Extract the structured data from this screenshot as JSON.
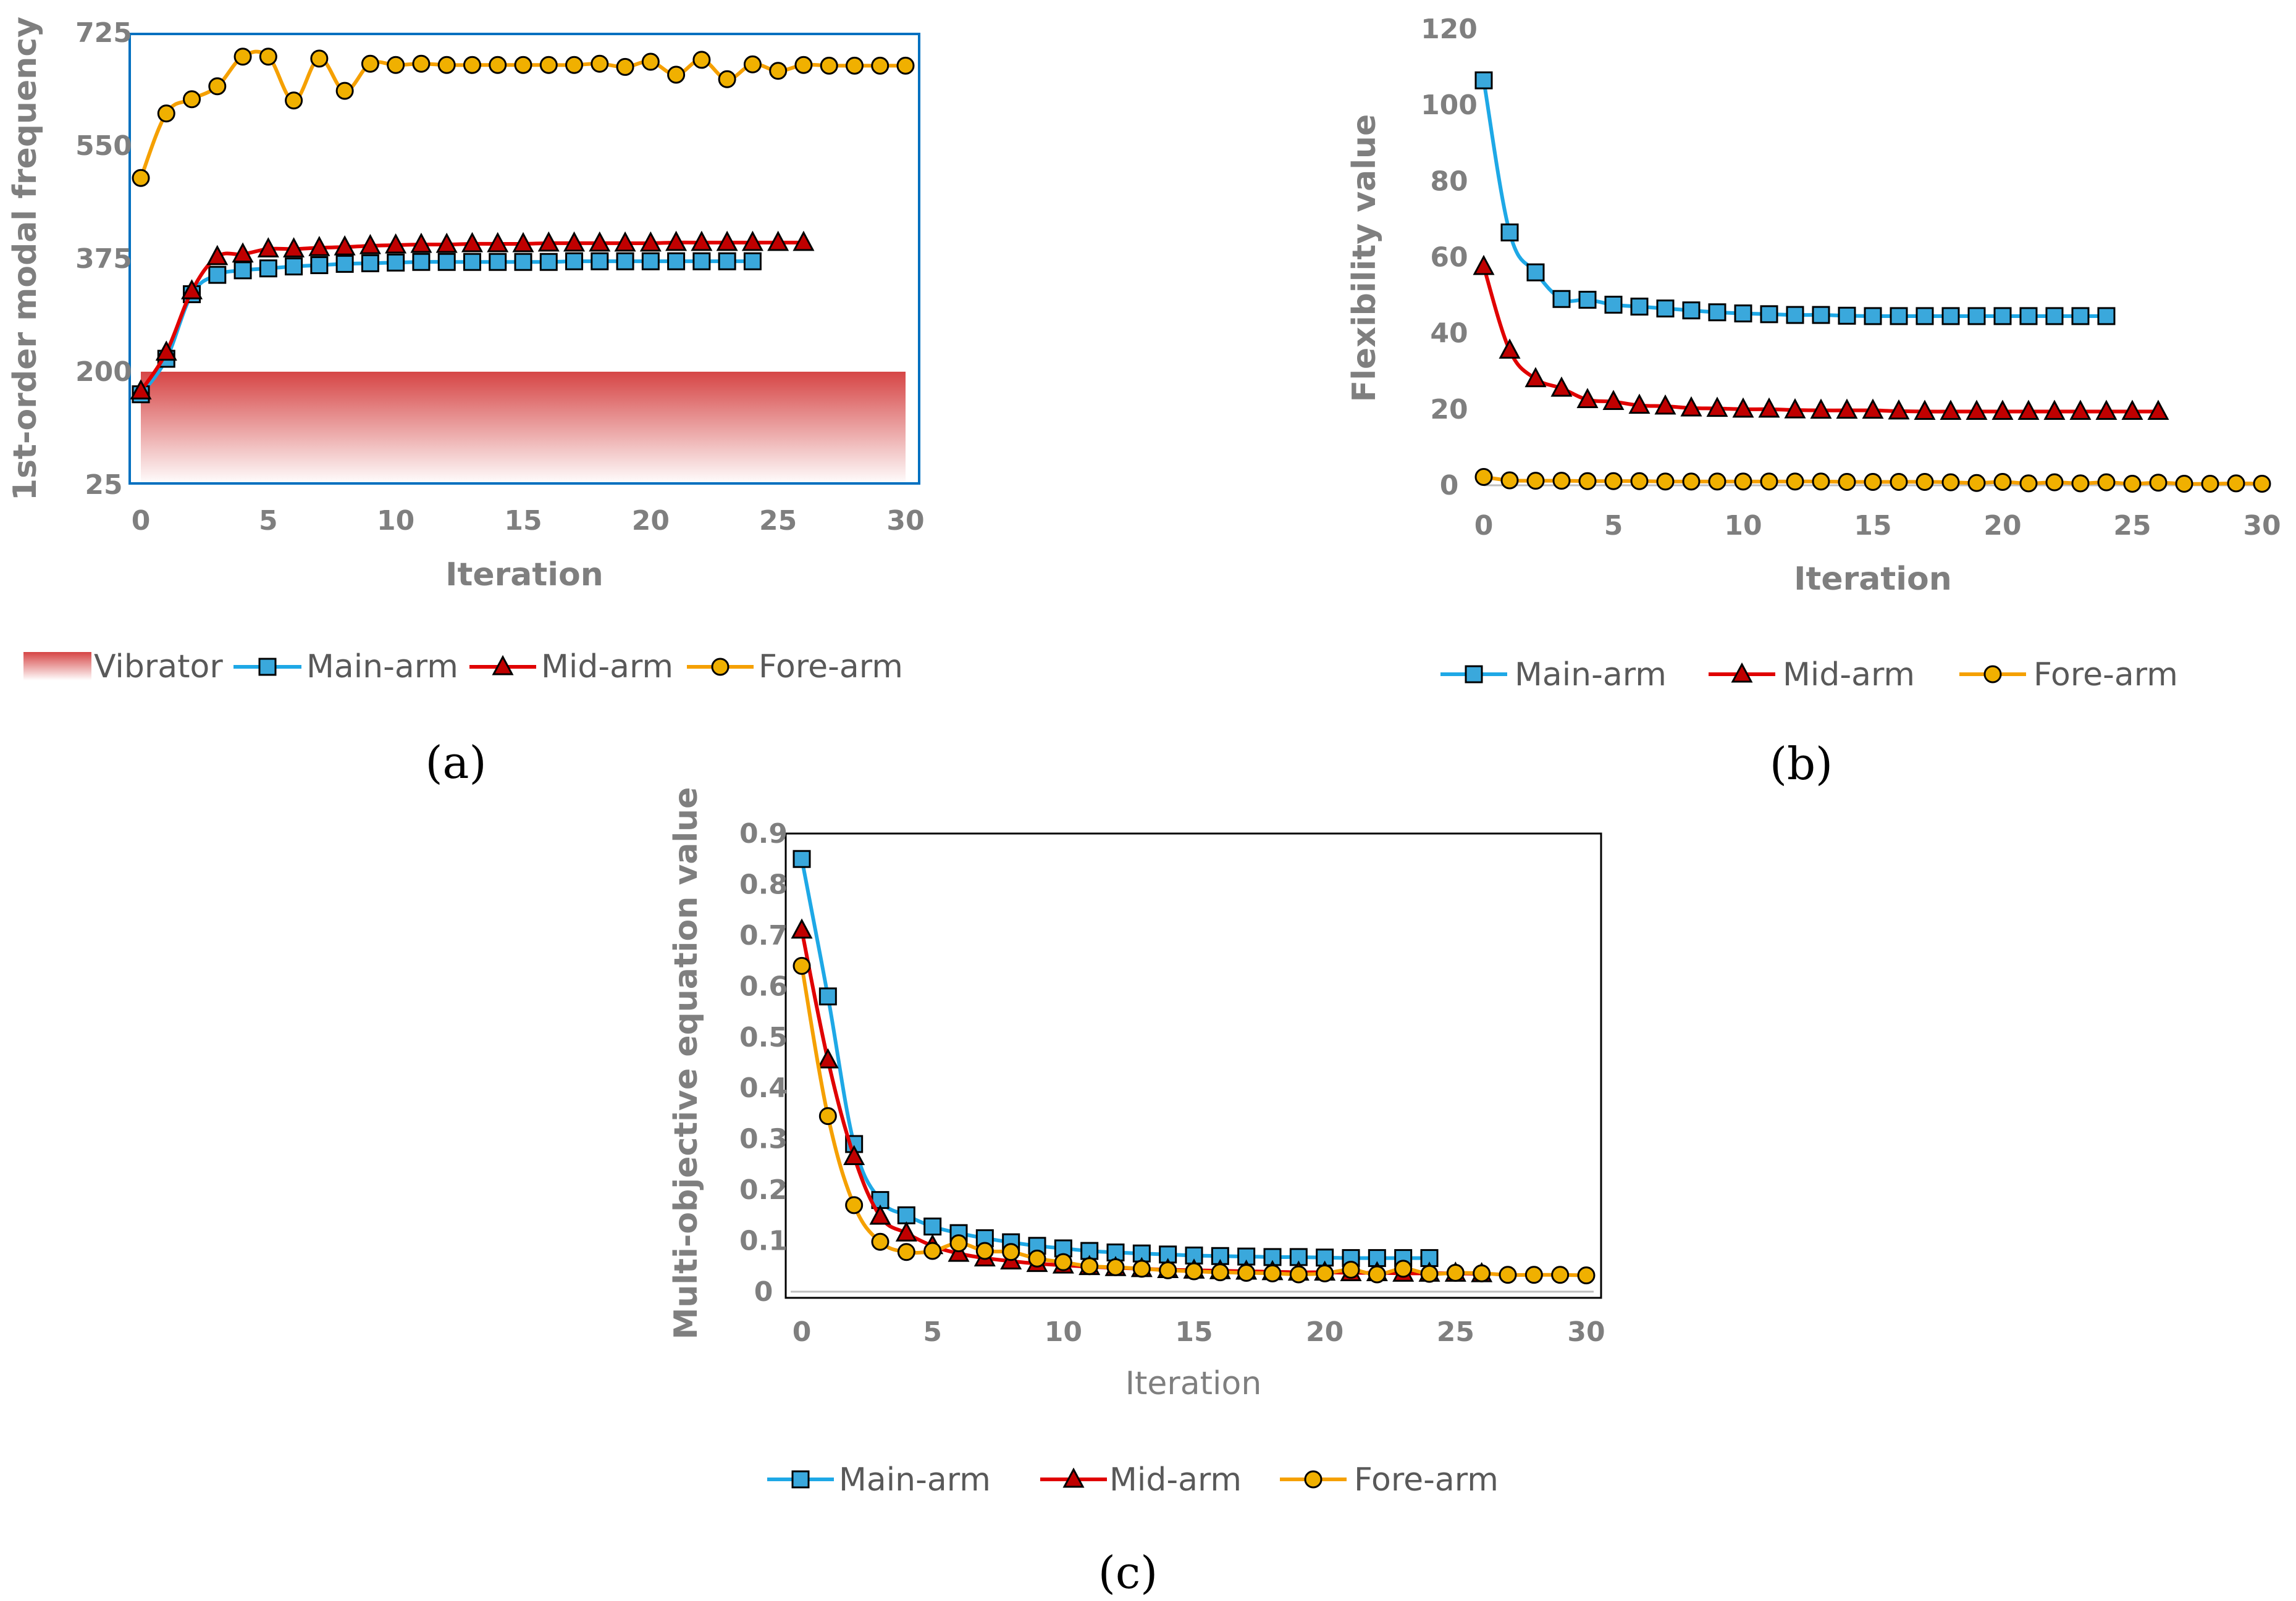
{
  "colors": {
    "main": "#1ea8e6",
    "mid": "#e00000",
    "fore": "#f5a000",
    "main_fill": "#3aa8dc",
    "mid_fill": "#c00000",
    "fore_fill": "#f0b000",
    "vibrator": "#d64545",
    "frame_a": "#0070c0",
    "frame": "#000000"
  },
  "chart_data": [
    {
      "id": "a",
      "type": "line",
      "panel_label": "(a)",
      "xlabel": "Iteration",
      "ylabel": "1st-order modal frequency",
      "xlim": [
        0,
        30
      ],
      "ylim": [
        25,
        725
      ],
      "xticks": [
        "0",
        "5",
        "10",
        "15",
        "20",
        "25",
        "30"
      ],
      "yticks": [
        "25",
        "200",
        "375",
        "550",
        "725"
      ],
      "band": {
        "name": "Vibrator",
        "x_from": 0,
        "x_to": 30,
        "y_from": 25,
        "y_to": 200
      },
      "series": [
        {
          "name": "Main-arm",
          "marker": "square",
          "values": [
            165,
            220,
            320,
            350,
            357,
            360,
            363,
            365,
            367,
            368,
            369,
            370,
            370,
            370,
            370,
            370,
            370,
            371,
            371,
            371,
            371,
            371,
            371,
            371,
            371
          ]
        },
        {
          "name": "Mid-arm",
          "marker": "triangle",
          "values": [
            170,
            230,
            325,
            378,
            382,
            390,
            390,
            392,
            393,
            395,
            396,
            397,
            397,
            398,
            398,
            398,
            399,
            399,
            399,
            399,
            399,
            400,
            400,
            400,
            400,
            400,
            400
          ]
        },
        {
          "name": "Fore-arm",
          "marker": "circle",
          "values": [
            500,
            600,
            622,
            642,
            688,
            688,
            620,
            685,
            635,
            677,
            675,
            677,
            675,
            675,
            675,
            675,
            675,
            675,
            677,
            672,
            680,
            660,
            683,
            653,
            676,
            666,
            675,
            674,
            674,
            674,
            674
          ]
        }
      ],
      "legend": [
        "Vibrator",
        "Main-arm",
        "Mid-arm",
        "Fore-arm"
      ]
    },
    {
      "id": "b",
      "type": "line",
      "panel_label": "(b)",
      "xlabel": "Iteration",
      "ylabel": "Flexibility value",
      "xlim": [
        0,
        30
      ],
      "ylim": [
        0,
        120
      ],
      "xticks": [
        "0",
        "5",
        "10",
        "15",
        "20",
        "25",
        "30"
      ],
      "yticks": [
        "0",
        "20",
        "40",
        "60",
        "80",
        "100",
        "120"
      ],
      "series": [
        {
          "name": "Main-arm",
          "marker": "square",
          "values": [
            106.5,
            66.5,
            56,
            49,
            48.8,
            47.5,
            47,
            46.5,
            46,
            45.5,
            45.2,
            45,
            44.8,
            44.8,
            44.6,
            44.5,
            44.5,
            44.5,
            44.5,
            44.5,
            44.5,
            44.5,
            44.5,
            44.5,
            44.5
          ]
        },
        {
          "name": "Mid-arm",
          "marker": "triangle",
          "values": [
            57.5,
            35.5,
            28,
            25.5,
            22.5,
            22,
            21,
            20.8,
            20.3,
            20.2,
            20,
            20,
            19.8,
            19.7,
            19.7,
            19.7,
            19.5,
            19.4,
            19.4,
            19.4,
            19.4,
            19.4,
            19.4,
            19.4,
            19.4,
            19.4,
            19.4
          ]
        },
        {
          "name": "Fore-arm",
          "marker": "circle",
          "values": [
            2.2,
            1.3,
            1.2,
            1.2,
            1.1,
            1.1,
            1.1,
            1.0,
            1.0,
            1.0,
            1.0,
            1.0,
            1.0,
            1.0,
            0.9,
            0.9,
            0.9,
            0.9,
            0.8,
            0.6,
            0.9,
            0.5,
            0.8,
            0.5,
            0.8,
            0.4,
            0.7,
            0.4,
            0.4,
            0.5,
            0.4
          ]
        }
      ],
      "legend": [
        "Main-arm",
        "Mid-arm",
        "Fore-arm"
      ]
    },
    {
      "id": "c",
      "type": "line",
      "panel_label": "(c)",
      "xlabel": "Iteration",
      "ylabel": "Multi-objective equation value",
      "xlim": [
        0,
        30
      ],
      "ylim": [
        0,
        0.9
      ],
      "xticks": [
        "0",
        "5",
        "10",
        "15",
        "20",
        "25",
        "30"
      ],
      "yticks": [
        "0",
        "0.1",
        "0.2",
        "0.3",
        "0.4",
        "0.5",
        "0.6",
        "0.7",
        "0.8",
        "0.9"
      ],
      "series": [
        {
          "name": "Main-arm",
          "marker": "square",
          "values": [
            0.85,
            0.58,
            0.29,
            0.18,
            0.15,
            0.128,
            0.115,
            0.105,
            0.097,
            0.09,
            0.085,
            0.08,
            0.077,
            0.075,
            0.073,
            0.071,
            0.07,
            0.069,
            0.068,
            0.068,
            0.067,
            0.066,
            0.066,
            0.066,
            0.066
          ]
        },
        {
          "name": "Mid-arm",
          "marker": "triangle",
          "values": [
            0.71,
            0.455,
            0.265,
            0.148,
            0.115,
            0.09,
            0.075,
            0.066,
            0.06,
            0.055,
            0.052,
            0.049,
            0.047,
            0.045,
            0.043,
            0.042,
            0.041,
            0.04,
            0.039,
            0.038,
            0.038,
            0.037,
            0.037,
            0.036,
            0.036,
            0.036,
            0.035
          ]
        },
        {
          "name": "Fore-arm",
          "marker": "circle",
          "values": [
            0.64,
            0.345,
            0.17,
            0.098,
            0.078,
            0.08,
            0.095,
            0.08,
            0.078,
            0.065,
            0.058,
            0.05,
            0.048,
            0.045,
            0.042,
            0.04,
            0.038,
            0.037,
            0.036,
            0.034,
            0.036,
            0.043,
            0.034,
            0.045,
            0.035,
            0.037,
            0.036,
            0.033,
            0.033,
            0.033,
            0.032
          ]
        }
      ],
      "legend": [
        "Main-arm",
        "Mid-arm",
        "Fore-arm"
      ]
    }
  ]
}
